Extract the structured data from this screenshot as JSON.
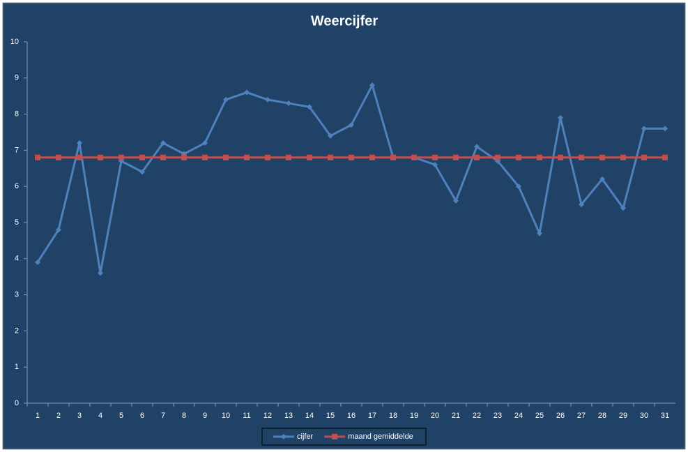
{
  "chart_data": {
    "type": "line",
    "title": "Weercijfer",
    "categories": [
      1,
      2,
      3,
      4,
      5,
      6,
      7,
      8,
      9,
      10,
      11,
      12,
      13,
      14,
      15,
      16,
      17,
      18,
      19,
      20,
      21,
      22,
      23,
      24,
      25,
      26,
      27,
      28,
      29,
      30,
      31
    ],
    "series": [
      {
        "name": "cijfer",
        "color": "#4f81bd",
        "marker": "diamond",
        "values": [
          3.9,
          4.8,
          7.2,
          3.6,
          6.7,
          6.4,
          7.2,
          6.9,
          7.2,
          8.4,
          8.6,
          8.4,
          8.3,
          8.2,
          7.4,
          7.7,
          8.8,
          6.8,
          6.8,
          6.6,
          5.6,
          7.1,
          6.7,
          6.0,
          4.7,
          7.9,
          5.5,
          6.2,
          5.4,
          7.6,
          7.6
        ]
      },
      {
        "name": "maand gemiddelde",
        "color": "#c0504d",
        "marker": "square",
        "values": [
          6.8,
          6.8,
          6.8,
          6.8,
          6.8,
          6.8,
          6.8,
          6.8,
          6.8,
          6.8,
          6.8,
          6.8,
          6.8,
          6.8,
          6.8,
          6.8,
          6.8,
          6.8,
          6.8,
          6.8,
          6.8,
          6.8,
          6.8,
          6.8,
          6.8,
          6.8,
          6.8,
          6.8,
          6.8,
          6.8,
          6.8
        ]
      }
    ],
    "ylim": [
      0,
      10
    ],
    "yticks": [
      0,
      1,
      2,
      3,
      4,
      5,
      6,
      7,
      8,
      9,
      10
    ],
    "grid": false,
    "legend": "bottom"
  }
}
